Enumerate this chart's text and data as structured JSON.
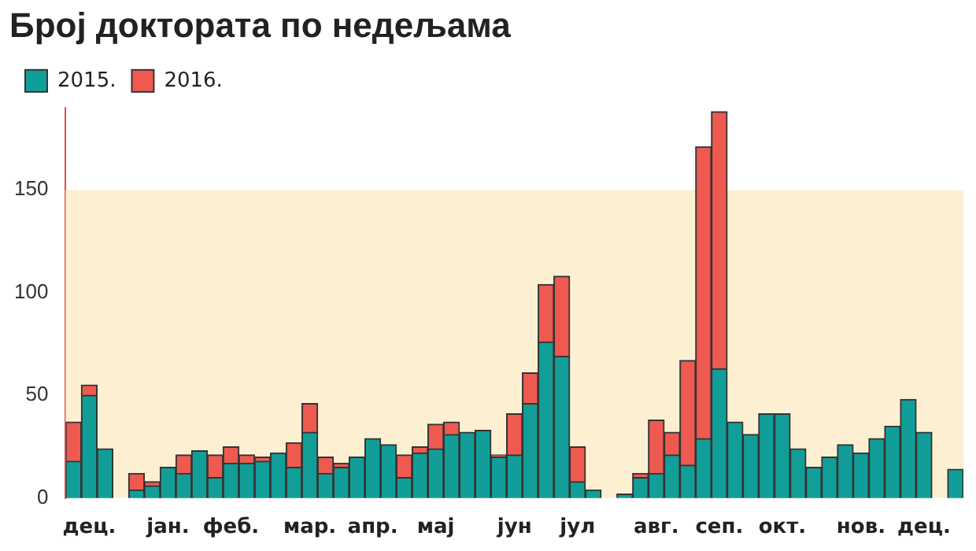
{
  "chart_data": {
    "type": "bar",
    "title": "Број доктората по недељама",
    "stacked": true,
    "categories": [
      null,
      "дец.",
      null,
      null,
      null,
      null,
      "јан.",
      null,
      null,
      null,
      "феб.",
      null,
      null,
      null,
      null,
      "мар.",
      null,
      null,
      null,
      "апр.",
      null,
      null,
      null,
      "мај",
      null,
      null,
      null,
      null,
      "јун",
      null,
      null,
      null,
      "јул",
      null,
      null,
      null,
      null,
      "авг.",
      null,
      null,
      null,
      "сеп.",
      null,
      null,
      null,
      "окт.",
      null,
      null,
      null,
      null,
      "нов.",
      null,
      null,
      null,
      "дец.",
      null,
      null
    ],
    "series": [
      {
        "name": "2015.",
        "color": "#129e98",
        "values": [
          18,
          50,
          24,
          0,
          4,
          6,
          15,
          12,
          23,
          10,
          17,
          17,
          18,
          22,
          15,
          32,
          12,
          15,
          20,
          29,
          26,
          10,
          22,
          24,
          31,
          32,
          33,
          20,
          21,
          46,
          76,
          69,
          8,
          4,
          0,
          2,
          10,
          12,
          21,
          16,
          29,
          63,
          37,
          31,
          41,
          41,
          24,
          15,
          20,
          26,
          22,
          29,
          35,
          48,
          32,
          0,
          14
        ]
      },
      {
        "name": "2016.",
        "color": "#ee5a50",
        "values": [
          19,
          5,
          null,
          null,
          8,
          2,
          null,
          9,
          null,
          11,
          8,
          4,
          2,
          null,
          12,
          14,
          8,
          2,
          null,
          null,
          null,
          11,
          3,
          12,
          6,
          null,
          null,
          1,
          20,
          15,
          28,
          39,
          17,
          null,
          null,
          null,
          2,
          26,
          11,
          51,
          142,
          125,
          null,
          null,
          null,
          null,
          null,
          null,
          null,
          null,
          null,
          null,
          null,
          null,
          null,
          null,
          null
        ]
      }
    ],
    "ylim": [
      0,
      190
    ],
    "yticks": [
      0,
      50,
      100,
      150
    ],
    "bands": [
      {
        "axis": "y",
        "from": 0,
        "to": 150,
        "color": "#fdf0d2"
      }
    ],
    "legend": "top left",
    "grid": false
  }
}
